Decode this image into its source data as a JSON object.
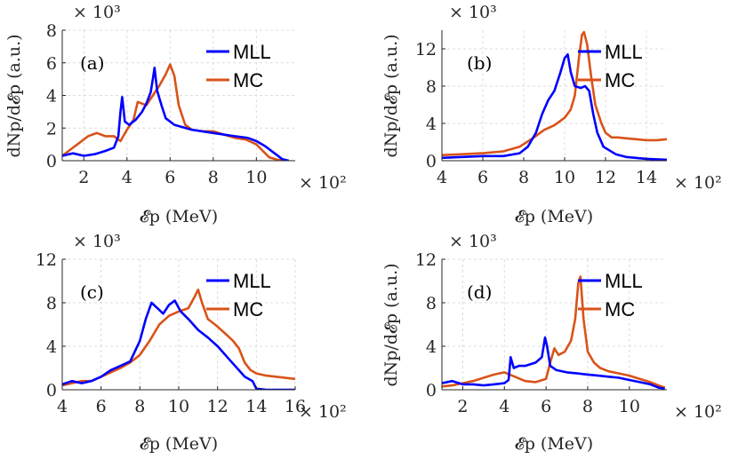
{
  "colors": {
    "MLL": "#0000ff",
    "MC": "#d95319",
    "axis": "#262626",
    "grid": "#dcdcdc"
  },
  "chart_data": [
    {
      "type": "line",
      "panel": "(a)",
      "xlabel": "𝓔p (MeV)",
      "ylabel": "dNp/d𝓔p (a.u.)",
      "x_multiplier": "× 10²",
      "y_multiplier": "× 10³",
      "xlim": [
        1,
        11.8
      ],
      "ylim": [
        0,
        8
      ],
      "xticks": [
        2,
        4,
        6,
        8,
        10
      ],
      "yticks": [
        0,
        2,
        4,
        6,
        8
      ],
      "legend": [
        "MLL",
        "MC"
      ],
      "legend_position": "top-right",
      "series": [
        {
          "name": "MLL",
          "color": "#0000ff",
          "x": [
            1.0,
            1.5,
            2.0,
            2.5,
            3.0,
            3.4,
            3.6,
            3.7,
            3.78,
            3.9,
            4.1,
            4.4,
            4.7,
            4.9,
            5.1,
            5.2,
            5.28,
            5.4,
            5.6,
            5.8,
            6.2,
            7.0,
            8.0,
            9.0,
            9.6,
            10.0,
            10.4,
            10.8,
            11.2,
            11.5
          ],
          "y": [
            0.3,
            0.45,
            0.3,
            0.4,
            0.6,
            0.8,
            1.5,
            3.0,
            3.9,
            2.4,
            2.2,
            2.5,
            3.0,
            3.5,
            4.2,
            5.0,
            5.7,
            4.3,
            3.4,
            2.6,
            2.2,
            1.9,
            1.7,
            1.5,
            1.4,
            1.2,
            0.9,
            0.5,
            0.1,
            0.0
          ]
        },
        {
          "name": "MC",
          "color": "#d95319",
          "x": [
            1.0,
            1.4,
            1.8,
            2.2,
            2.6,
            3.0,
            3.4,
            3.7,
            4.0,
            4.3,
            4.5,
            4.7,
            4.9,
            5.2,
            5.5,
            5.8,
            6.0,
            6.2,
            6.4,
            6.7,
            7.0,
            7.5,
            8.0,
            8.5,
            9.0,
            9.5,
            10.0,
            10.3,
            10.6,
            11.0,
            11.5
          ],
          "y": [
            0.3,
            0.7,
            1.1,
            1.5,
            1.7,
            1.5,
            1.5,
            1.2,
            1.9,
            2.5,
            3.6,
            3.5,
            3.4,
            4.0,
            4.6,
            5.3,
            5.9,
            5.2,
            3.4,
            2.2,
            1.9,
            1.8,
            1.8,
            1.6,
            1.4,
            1.3,
            1.0,
            0.6,
            0.2,
            0.05,
            0.0
          ]
        }
      ]
    },
    {
      "type": "line",
      "panel": "(b)",
      "xlabel": "𝓔p (MeV)",
      "ylabel": "dNp/d𝓔p (a.u.)",
      "x_multiplier": "× 10²",
      "y_multiplier": "× 10³",
      "xlim": [
        4,
        15
      ],
      "ylim": [
        0,
        14
      ],
      "xticks": [
        4,
        6,
        8,
        10,
        12,
        14
      ],
      "yticks": [
        0,
        4,
        8,
        12
      ],
      "legend": [
        "MLL",
        "MC"
      ],
      "legend_position": "top-right",
      "series": [
        {
          "name": "MLL",
          "color": "#0000ff",
          "x": [
            4.0,
            5.0,
            6.0,
            7.0,
            7.8,
            8.2,
            8.6,
            8.9,
            9.2,
            9.5,
            9.8,
            10.0,
            10.15,
            10.3,
            10.5,
            10.8,
            11.0,
            11.2,
            11.4,
            11.6,
            11.9,
            12.5,
            13.0,
            14.0,
            15.0
          ],
          "y": [
            0.3,
            0.4,
            0.5,
            0.5,
            0.8,
            1.5,
            3.0,
            5.0,
            6.5,
            7.5,
            9.5,
            11.0,
            11.4,
            9.5,
            8.0,
            7.8,
            8.0,
            7.5,
            5.0,
            3.0,
            1.5,
            0.7,
            0.4,
            0.2,
            0.1
          ]
        },
        {
          "name": "MC",
          "color": "#d95319",
          "x": [
            4.0,
            5.0,
            6.0,
            7.0,
            7.8,
            8.5,
            9.0,
            9.5,
            10.0,
            10.3,
            10.5,
            10.7,
            10.85,
            10.95,
            11.1,
            11.3,
            11.5,
            11.8,
            12.0,
            12.3,
            12.6,
            13.0,
            13.5,
            14.0,
            14.5,
            15.0
          ],
          "y": [
            0.6,
            0.7,
            0.8,
            1.0,
            1.5,
            2.5,
            3.3,
            3.8,
            4.6,
            5.5,
            7.0,
            11.0,
            13.5,
            13.8,
            12.5,
            9.0,
            6.0,
            4.0,
            3.0,
            2.5,
            2.5,
            2.4,
            2.3,
            2.2,
            2.2,
            2.3
          ]
        }
      ]
    },
    {
      "type": "line",
      "panel": "(c)",
      "xlabel": "𝓔p (MeV)",
      "ylabel": "dNp/d𝓔p (a.u.)",
      "x_multiplier": "× 10²",
      "y_multiplier": "× 10³",
      "xlim": [
        4,
        16
      ],
      "ylim": [
        0,
        12
      ],
      "xticks": [
        4,
        6,
        8,
        10,
        12,
        14,
        16
      ],
      "yticks": [
        0,
        4,
        8,
        12
      ],
      "legend": [
        "MLL",
        "MC"
      ],
      "legend_position": "top-right",
      "series": [
        {
          "name": "MLL",
          "color": "#0000ff",
          "x": [
            4.0,
            4.5,
            5.0,
            5.5,
            6.0,
            6.5,
            7.0,
            7.5,
            8.0,
            8.3,
            8.6,
            8.9,
            9.2,
            9.5,
            9.8,
            10.1,
            10.5,
            11.0,
            11.5,
            12.0,
            12.5,
            13.0,
            13.4,
            13.8,
            14.0,
            14.5,
            15.0,
            16.0
          ],
          "y": [
            0.5,
            0.8,
            0.6,
            0.8,
            1.2,
            1.8,
            2.2,
            2.6,
            4.5,
            6.5,
            8.0,
            7.5,
            7.0,
            7.8,
            8.2,
            7.2,
            6.5,
            5.5,
            4.8,
            4.0,
            3.0,
            2.0,
            1.2,
            0.8,
            0.1,
            0.0,
            0.0,
            0.0
          ]
        },
        {
          "name": "MC",
          "color": "#d95319",
          "x": [
            4.0,
            4.5,
            5.0,
            5.5,
            6.0,
            6.5,
            7.0,
            7.5,
            8.0,
            8.5,
            9.0,
            9.5,
            10.0,
            10.5,
            10.8,
            11.0,
            11.2,
            11.5,
            12.0,
            12.5,
            12.8,
            13.1,
            13.4,
            13.7,
            14.0,
            14.5,
            15.0,
            16.0
          ],
          "y": [
            0.4,
            0.6,
            0.8,
            0.8,
            1.2,
            1.6,
            2.0,
            2.5,
            3.2,
            4.5,
            6.0,
            6.8,
            7.2,
            7.5,
            8.5,
            9.2,
            8.0,
            6.5,
            5.8,
            5.0,
            4.5,
            3.8,
            2.5,
            1.8,
            1.5,
            1.3,
            1.2,
            1.0
          ]
        }
      ]
    },
    {
      "type": "line",
      "panel": "(d)",
      "xlabel": "𝓔p (MeV)",
      "ylabel": "dNp/d𝓔p (a.u.)",
      "x_multiplier": "× 10²",
      "y_multiplier": "× 10³",
      "xlim": [
        1,
        11.8
      ],
      "ylim": [
        0,
        12
      ],
      "xticks": [
        2,
        4,
        6,
        8,
        10
      ],
      "yticks": [
        0,
        4,
        8,
        12
      ],
      "legend": [
        "MLL",
        "MC"
      ],
      "legend_position": "top-right",
      "series": [
        {
          "name": "MLL",
          "color": "#0000ff",
          "x": [
            1.0,
            1.5,
            2.0,
            2.5,
            3.0,
            3.5,
            4.0,
            4.2,
            4.3,
            4.45,
            4.7,
            5.0,
            5.5,
            5.8,
            5.95,
            6.05,
            6.2,
            6.5,
            7.0,
            7.5,
            8.0,
            8.5,
            9.0,
            9.5,
            10.0,
            10.5,
            11.0,
            11.4,
            11.7
          ],
          "y": [
            0.6,
            0.8,
            0.5,
            0.5,
            0.4,
            0.5,
            0.6,
            0.9,
            3.0,
            2.0,
            2.2,
            2.2,
            2.5,
            3.0,
            4.8,
            4.0,
            2.2,
            1.8,
            1.6,
            1.5,
            1.4,
            1.3,
            1.2,
            1.1,
            0.9,
            0.7,
            0.5,
            0.2,
            0.1
          ]
        },
        {
          "name": "MC",
          "color": "#d95319",
          "x": [
            1.0,
            1.5,
            2.0,
            2.5,
            3.0,
            3.5,
            4.0,
            4.5,
            5.0,
            5.5,
            6.0,
            6.2,
            6.4,
            6.6,
            6.9,
            7.2,
            7.4,
            7.55,
            7.65,
            7.8,
            8.0,
            8.3,
            8.6,
            9.0,
            9.5,
            10.0,
            10.5,
            11.0,
            11.4,
            11.7
          ],
          "y": [
            0.3,
            0.4,
            0.6,
            0.8,
            1.1,
            1.4,
            1.6,
            1.2,
            0.8,
            0.7,
            1.0,
            2.5,
            3.8,
            3.2,
            3.5,
            4.5,
            6.5,
            9.8,
            10.4,
            6.5,
            3.5,
            2.5,
            2.0,
            1.7,
            1.5,
            1.3,
            1.0,
            0.7,
            0.4,
            0.2
          ]
        }
      ]
    }
  ]
}
